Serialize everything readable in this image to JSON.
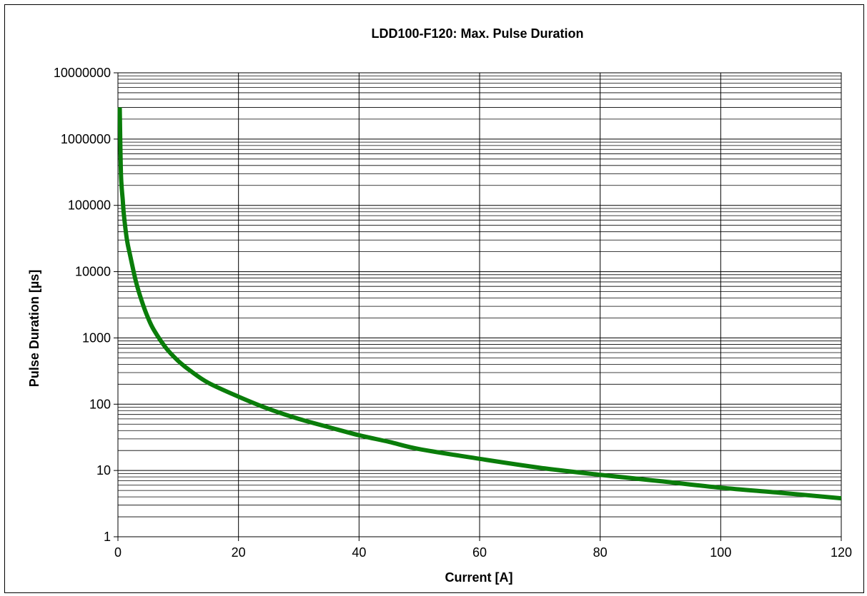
{
  "chart_data": {
    "type": "line",
    "title": "LDD100-F120: Max. Pulse Duration",
    "xlabel": "Current [A]",
    "ylabel": "Pulse Duration [µs]",
    "x_scale": "linear",
    "y_scale": "log",
    "xlim": [
      0,
      120
    ],
    "ylim": [
      1,
      10000000
    ],
    "x_ticks": [
      0,
      20,
      40,
      60,
      80,
      100,
      120
    ],
    "x_tick_labels": [
      "0",
      "20",
      "40",
      "60",
      "80",
      "100",
      "120"
    ],
    "y_ticks": [
      1,
      10,
      100,
      1000,
      10000,
      100000,
      1000000,
      10000000
    ],
    "y_tick_labels": [
      "1",
      "10",
      "100",
      "1000",
      "10000",
      "100000",
      "1000000",
      "10000000"
    ],
    "grid": true,
    "minor_grid_y": true,
    "legend": "none",
    "series": [
      {
        "color": "#0a7d0a",
        "x": [
          0.3,
          0.5,
          0.8,
          1,
          1.5,
          2,
          3,
          4,
          5,
          6,
          8,
          10,
          12,
          15,
          20,
          25,
          30,
          35,
          40,
          45,
          50,
          60,
          70,
          80,
          90,
          100,
          110,
          120
        ],
        "y": [
          3000000,
          300000,
          120000,
          70000,
          30000,
          18000,
          7000,
          3500,
          2000,
          1300,
          700,
          450,
          320,
          210,
          130,
          85,
          60,
          45,
          34,
          27,
          21,
          15,
          11,
          8.6,
          6.9,
          5.5,
          4.6,
          3.8
        ]
      }
    ]
  }
}
